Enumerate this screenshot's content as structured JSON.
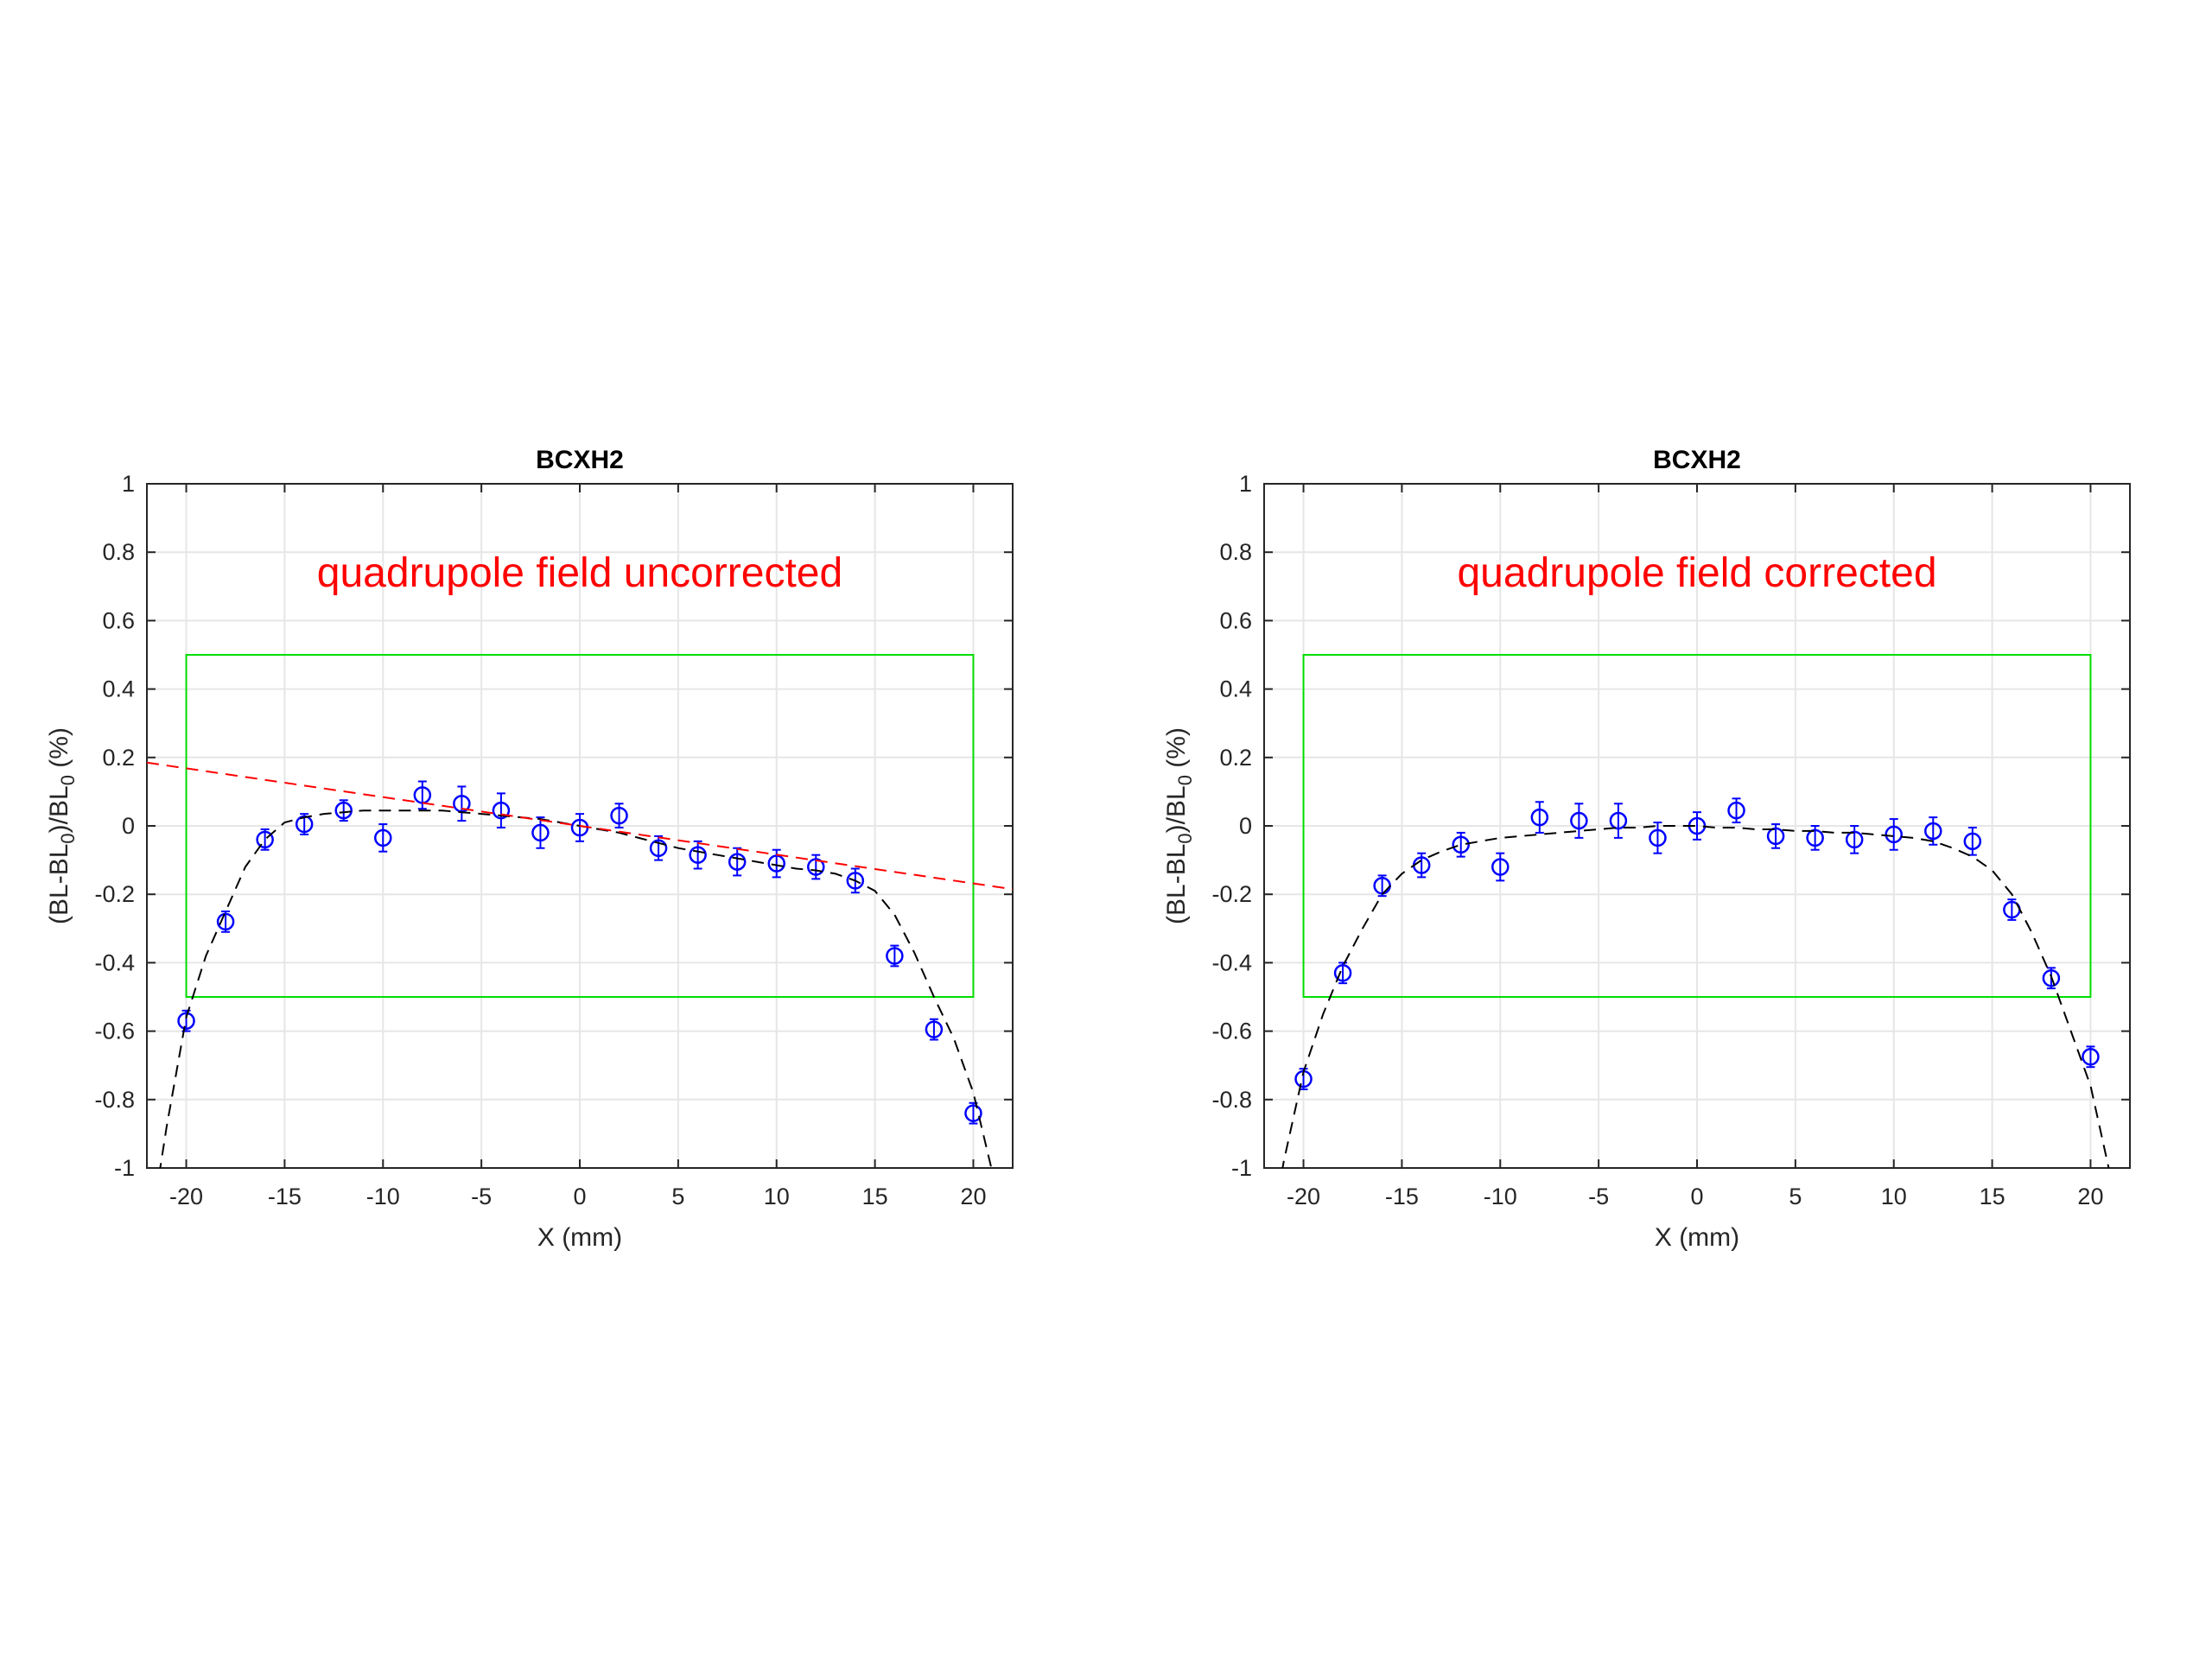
{
  "colors": {
    "data_points": "#0000ff",
    "fit_curve": "#000000",
    "linear_fit": "#ff0000",
    "tolerance_box": "#00dd00",
    "annotation": "#ff0000",
    "grid": "#e6e6e6",
    "axes": "#262626"
  },
  "chart_data": [
    {
      "type": "scatter",
      "title": "BCXH2",
      "annotation": "quadrupole field uncorrected",
      "xlabel": "X (mm)",
      "ylabel": "(BL-BL0)/BL0 (%)",
      "xlim": [
        -22,
        22
      ],
      "ylim": [
        -1,
        1
      ],
      "xticks": [
        -20,
        -15,
        -10,
        -5,
        0,
        5,
        10,
        15,
        20
      ],
      "yticks": [
        -1,
        -0.8,
        -0.6,
        -0.4,
        -0.2,
        0,
        0.2,
        0.4,
        0.6,
        0.8,
        1
      ],
      "grid": true,
      "tolerance_box": {
        "x": [
          -20,
          20
        ],
        "y": [
          -0.5,
          0.5
        ]
      },
      "series": [
        {
          "kind": "points-with-errorbars",
          "marker": "open-circle",
          "x": [
            -20,
            -18,
            -16,
            -14,
            -12,
            -10,
            -8,
            -6,
            -4,
            -2,
            0,
            2,
            4,
            6,
            8,
            10,
            12,
            14,
            16,
            18,
            20
          ],
          "y": [
            -0.57,
            -0.28,
            -0.04,
            0.005,
            0.045,
            -0.035,
            0.09,
            0.065,
            0.045,
            -0.02,
            -0.005,
            0.03,
            -0.065,
            -0.085,
            -0.105,
            -0.11,
            -0.12,
            -0.16,
            -0.38,
            -0.595,
            -0.84
          ],
          "err": [
            0.03,
            0.03,
            0.03,
            0.03,
            0.03,
            0.04,
            0.04,
            0.05,
            0.05,
            0.045,
            0.04,
            0.035,
            0.035,
            0.04,
            0.04,
            0.04,
            0.035,
            0.035,
            0.03,
            0.03,
            0.03
          ]
        },
        {
          "kind": "fit-curve",
          "style": "dashed",
          "x": [
            -22,
            -21,
            -20,
            -19,
            -18,
            -17,
            -16,
            -15,
            -14,
            -13,
            -12,
            -11,
            -10,
            -9,
            -8,
            -7,
            -6,
            -5,
            -4,
            -3,
            -2,
            -1,
            0,
            1,
            2,
            3,
            4,
            5,
            6,
            7,
            8,
            9,
            10,
            11,
            12,
            13,
            14,
            15,
            16,
            17,
            18,
            19,
            20,
            21,
            22
          ],
          "y": [
            -1.25,
            -0.88,
            -0.56,
            -0.38,
            -0.25,
            -0.12,
            -0.04,
            0.01,
            0.025,
            0.035,
            0.04,
            0.045,
            0.045,
            0.045,
            0.045,
            0.045,
            0.04,
            0.035,
            0.03,
            0.025,
            0.02,
            0.01,
            0.0,
            -0.01,
            -0.02,
            -0.035,
            -0.05,
            -0.065,
            -0.075,
            -0.085,
            -0.095,
            -0.105,
            -0.115,
            -0.125,
            -0.13,
            -0.14,
            -0.16,
            -0.19,
            -0.26,
            -0.37,
            -0.5,
            -0.62,
            -0.78,
            -1.02,
            -1.3
          ]
        },
        {
          "kind": "linear-fit",
          "style": "dashed",
          "x": [
            -22,
            22
          ],
          "y": [
            0.185,
            -0.185
          ]
        }
      ]
    },
    {
      "type": "scatter",
      "title": "BCXH2",
      "annotation": "quadrupole field corrected",
      "xlabel": "X (mm)",
      "ylabel": "(BL-BL0)/BL0 (%)",
      "xlim": [
        -22,
        22
      ],
      "ylim": [
        -1,
        1
      ],
      "xticks": [
        -20,
        -15,
        -10,
        -5,
        0,
        5,
        10,
        15,
        20
      ],
      "yticks": [
        -1,
        -0.8,
        -0.6,
        -0.4,
        -0.2,
        0,
        0.2,
        0.4,
        0.6,
        0.8,
        1
      ],
      "grid": true,
      "tolerance_box": {
        "x": [
          -20,
          20
        ],
        "y": [
          -0.5,
          0.5
        ]
      },
      "series": [
        {
          "kind": "points-with-errorbars",
          "marker": "open-circle",
          "x": [
            -20,
            -18,
            -16,
            -14,
            -12,
            -10,
            -8,
            -6,
            -4,
            -2,
            0,
            2,
            4,
            6,
            8,
            10,
            12,
            14,
            16,
            18,
            20
          ],
          "y": [
            -0.74,
            -0.43,
            -0.175,
            -0.115,
            -0.055,
            -0.12,
            0.025,
            0.015,
            0.015,
            -0.035,
            0.0,
            0.045,
            -0.03,
            -0.035,
            -0.04,
            -0.025,
            -0.015,
            -0.045,
            -0.245,
            -0.445,
            -0.675
          ],
          "err": [
            0.03,
            0.03,
            0.03,
            0.035,
            0.035,
            0.04,
            0.045,
            0.05,
            0.05,
            0.045,
            0.04,
            0.035,
            0.035,
            0.035,
            0.04,
            0.045,
            0.04,
            0.04,
            0.03,
            0.03,
            0.03
          ]
        },
        {
          "kind": "fit-curve",
          "style": "dashed",
          "x": [
            -22,
            -21,
            -20,
            -19,
            -18,
            -17,
            -16,
            -15,
            -14,
            -13,
            -12,
            -11,
            -10,
            -9,
            -8,
            -7,
            -6,
            -5,
            -4,
            -3,
            -2,
            -1,
            0,
            1,
            2,
            3,
            4,
            5,
            6,
            7,
            8,
            9,
            10,
            11,
            12,
            13,
            14,
            15,
            16,
            17,
            18,
            19,
            20,
            21,
            22
          ],
          "y": [
            -1.3,
            -0.98,
            -0.72,
            -0.55,
            -0.41,
            -0.3,
            -0.2,
            -0.14,
            -0.1,
            -0.075,
            -0.055,
            -0.045,
            -0.035,
            -0.03,
            -0.025,
            -0.02,
            -0.015,
            -0.01,
            -0.005,
            -0.005,
            0.0,
            0.0,
            0.0,
            -0.005,
            -0.005,
            -0.01,
            -0.01,
            -0.015,
            -0.015,
            -0.02,
            -0.02,
            -0.025,
            -0.03,
            -0.035,
            -0.045,
            -0.065,
            -0.09,
            -0.13,
            -0.2,
            -0.31,
            -0.44,
            -0.6,
            -0.76,
            -1.02,
            -1.32
          ]
        }
      ]
    }
  ]
}
